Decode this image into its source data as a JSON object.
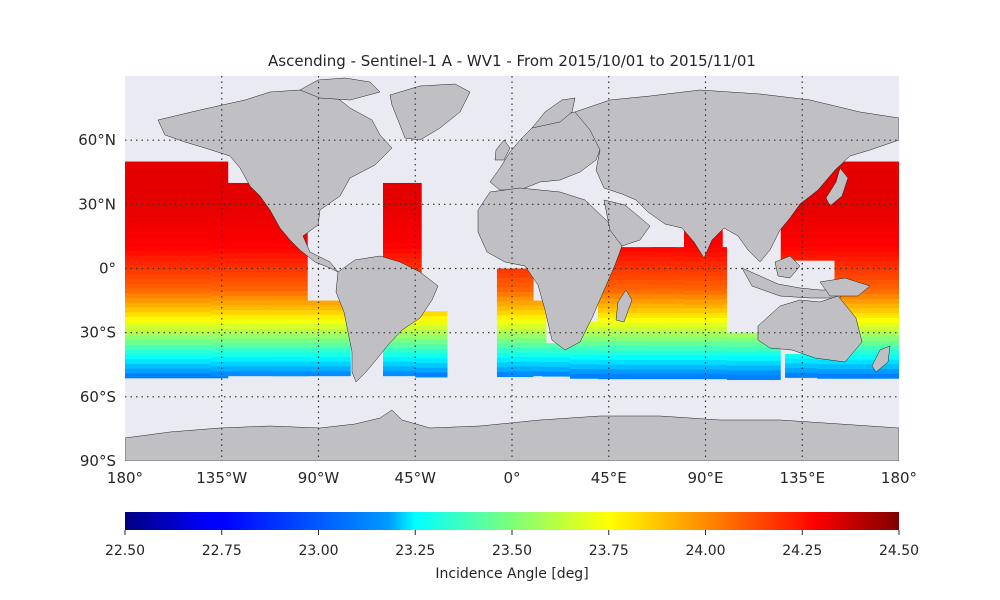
{
  "title": "Ascending - Sentinel-1 A - WV1 - From 2015/10/01 to 2015/11/01",
  "map": {
    "projection": "plate carree",
    "lon_range": [
      -180,
      180
    ],
    "lat_range": [
      -90,
      90
    ],
    "gridlines": "dotted",
    "ocean_color": "#eaeaf2",
    "land_color": "#c0c0c4",
    "lat_ticks": [
      {
        "lat": 60,
        "label": "60°N"
      },
      {
        "lat": 30,
        "label": "30°N"
      },
      {
        "lat": 0,
        "label": "0°"
      },
      {
        "lat": -30,
        "label": "30°S"
      },
      {
        "lat": -60,
        "label": "60°S"
      },
      {
        "lat": -90,
        "label": "90°S"
      }
    ],
    "lon_ticks": [
      {
        "lon": -180,
        "label": "180°"
      },
      {
        "lon": -135,
        "label": "135°W"
      },
      {
        "lon": -90,
        "label": "90°W"
      },
      {
        "lon": -45,
        "label": "45°W"
      },
      {
        "lon": 0,
        "label": "0°"
      },
      {
        "lon": 45,
        "label": "45°E"
      },
      {
        "lon": 90,
        "label": "90°E"
      },
      {
        "lon": 135,
        "label": "135°E"
      },
      {
        "lon": 180,
        "label": "180°"
      }
    ]
  },
  "colorbar": {
    "label": "Incidence Angle [deg]",
    "colormap": "jet",
    "range": [
      22.5,
      24.5
    ],
    "ticks": [
      "22.50",
      "22.75",
      "23.00",
      "23.25",
      "23.50",
      "23.75",
      "24.00",
      "24.25",
      "24.50"
    ]
  },
  "chart_data": {
    "type": "heatmap",
    "title": "Ascending - Sentinel-1 A - WV1 - From 2015/10/01 to 2015/11/01",
    "variable": "Incidence Angle [deg]",
    "value_range": [
      22.5,
      24.5
    ],
    "lat_extent_of_data": [
      -50,
      50
    ],
    "description_of_gradient": "values approx 24.3 at 50N-0, decreasing to ~23.0 near 50S",
    "sample_latitude_profile": [
      {
        "lat": 50,
        "value": 24.3
      },
      {
        "lat": 30,
        "value": 24.3
      },
      {
        "lat": 10,
        "value": 24.25
      },
      {
        "lat": 0,
        "value": 24.15
      },
      {
        "lat": -10,
        "value": 24.05
      },
      {
        "lat": -20,
        "value": 23.85
      },
      {
        "lat": -30,
        "value": 23.6
      },
      {
        "lat": -40,
        "value": 23.3
      },
      {
        "lat": -50,
        "value": 23.0
      }
    ]
  }
}
